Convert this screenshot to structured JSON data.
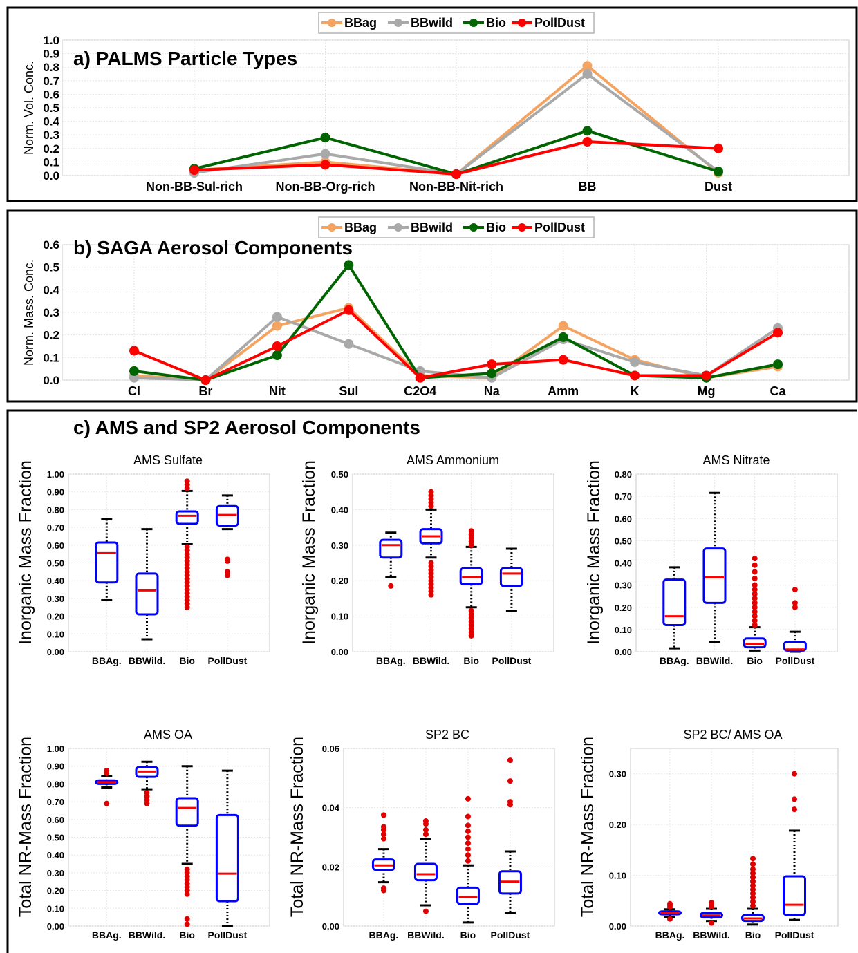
{
  "chart_data": [
    {
      "type": "line",
      "title": "a) PALMS Particle Types",
      "ylabel": "Norm. Vol. Conc.",
      "ylim": [
        0,
        1.0
      ],
      "yticks": [
        "0.0",
        "0.1",
        "0.2",
        "0.3",
        "0.4",
        "0.5",
        "0.6",
        "0.7",
        "0.8",
        "0.9",
        "1.0"
      ],
      "categories": [
        "Non-BB-Sul-rich",
        "Non-BB-Org-rich",
        "Non-BB-Nit-rich",
        "BB",
        "Dust"
      ],
      "legend": "top-center",
      "grid": true,
      "series": [
        {
          "name": "BBag",
          "color": "#f4a460",
          "values": [
            0.04,
            0.1,
            0.01,
            0.81,
            0.02
          ]
        },
        {
          "name": "BBwild",
          "color": "#a9a9a9",
          "values": [
            0.02,
            0.16,
            0.01,
            0.75,
            0.03
          ]
        },
        {
          "name": "Bio",
          "color": "#006400",
          "values": [
            0.05,
            0.28,
            0.01,
            0.33,
            0.03
          ]
        },
        {
          "name": "PollDust",
          "color": "#ff0000",
          "values": [
            0.04,
            0.08,
            0.01,
            0.25,
            0.2
          ]
        }
      ]
    },
    {
      "type": "line",
      "title": "b) SAGA Aerosol Components",
      "ylabel": "Norm. Mass. Conc.",
      "ylim": [
        0,
        0.6
      ],
      "yticks": [
        "0.0",
        "0.1",
        "0.2",
        "0.3",
        "0.4",
        "0.5",
        "0.6"
      ],
      "categories": [
        "Cl",
        "Br",
        "Nit",
        "Sul",
        "C2O4",
        "Na",
        "Amm",
        "K",
        "Mg",
        "Ca"
      ],
      "legend": "top-center",
      "grid": true,
      "series": [
        {
          "name": "BBag",
          "color": "#f4a460",
          "values": [
            0.02,
            0.0,
            0.24,
            0.32,
            0.02,
            0.01,
            0.24,
            0.09,
            0.01,
            0.06
          ]
        },
        {
          "name": "BBwild",
          "color": "#a9a9a9",
          "values": [
            0.01,
            0.0,
            0.28,
            0.16,
            0.04,
            0.01,
            0.18,
            0.08,
            0.02,
            0.23
          ]
        },
        {
          "name": "Bio",
          "color": "#006400",
          "values": [
            0.04,
            0.0,
            0.11,
            0.51,
            0.01,
            0.03,
            0.19,
            0.02,
            0.01,
            0.07
          ]
        },
        {
          "name": "PollDust",
          "color": "#ff0000",
          "values": [
            0.13,
            0.0,
            0.15,
            0.31,
            0.01,
            0.07,
            0.09,
            0.02,
            0.02,
            0.21
          ]
        }
      ]
    },
    {
      "type": "box",
      "group_title": "c) AMS and SP2 Aerosol Components",
      "panels": [
        {
          "title": "AMS Sulfate",
          "ylabel": "Inorganic Mass Fraction",
          "ylim": [
            0,
            1.0
          ],
          "yticks": [
            "0.00",
            "0.10",
            "0.20",
            "0.30",
            "0.40",
            "0.50",
            "0.60",
            "0.70",
            "0.80",
            "0.90",
            "1.00"
          ],
          "categories": [
            "BBAg.",
            "BBWild.",
            "Bio",
            "PollDust"
          ],
          "boxes": [
            {
              "q1": 0.39,
              "median": 0.555,
              "q3": 0.615,
              "whisker_low": 0.29,
              "whisker_high": 0.745,
              "outliers": []
            },
            {
              "q1": 0.21,
              "median": 0.345,
              "q3": 0.44,
              "whisker_low": 0.07,
              "whisker_high": 0.69,
              "outliers": []
            },
            {
              "q1": 0.72,
              "median": 0.765,
              "q3": 0.79,
              "whisker_low": 0.605,
              "whisker_high": 0.905,
              "outliers": [
                0.25,
                0.27,
                0.29,
                0.31,
                0.33,
                0.35,
                0.37,
                0.39,
                0.41,
                0.43,
                0.45,
                0.47,
                0.49,
                0.51,
                0.53,
                0.55,
                0.57,
                0.59,
                0.92,
                0.94,
                0.96
              ]
            },
            {
              "q1": 0.71,
              "median": 0.77,
              "q3": 0.82,
              "whisker_low": 0.69,
              "whisker_high": 0.88,
              "outliers": [
                0.43,
                0.45,
                0.51,
                0.52
              ]
            }
          ]
        },
        {
          "title": "AMS Ammonium",
          "ylabel": "Inorganic Mass Fraction",
          "ylim": [
            0,
            0.5
          ],
          "yticks": [
            "0.00",
            "0.10",
            "0.20",
            "0.30",
            "0.40",
            "0.50"
          ],
          "categories": [
            "BBAg.",
            "BBWild.",
            "Bio",
            "PollDust"
          ],
          "boxes": [
            {
              "q1": 0.265,
              "median": 0.3,
              "q3": 0.315,
              "whisker_low": 0.21,
              "whisker_high": 0.335,
              "outliers": [
                0.185
              ]
            },
            {
              "q1": 0.305,
              "median": 0.325,
              "q3": 0.345,
              "whisker_low": 0.265,
              "whisker_high": 0.4,
              "outliers": [
                0.16,
                0.17,
                0.18,
                0.19,
                0.2,
                0.21,
                0.22,
                0.23,
                0.24,
                0.25,
                0.41,
                0.42,
                0.43,
                0.44,
                0.45
              ]
            },
            {
              "q1": 0.19,
              "median": 0.21,
              "q3": 0.235,
              "whisker_low": 0.125,
              "whisker_high": 0.295,
              "outliers": [
                0.045,
                0.055,
                0.065,
                0.075,
                0.085,
                0.095,
                0.105,
                0.115,
                0.3,
                0.31,
                0.32,
                0.33,
                0.34
              ]
            },
            {
              "q1": 0.185,
              "median": 0.22,
              "q3": 0.235,
              "whisker_low": 0.115,
              "whisker_high": 0.29,
              "outliers": []
            }
          ]
        },
        {
          "title": "AMS Nitrate",
          "ylabel": "Inorganic Mass Fraction",
          "ylim": [
            0,
            0.8
          ],
          "yticks": [
            "0.00",
            "0.10",
            "0.20",
            "0.30",
            "0.40",
            "0.50",
            "0.60",
            "0.70",
            "0.80"
          ],
          "categories": [
            "BBAg.",
            "BBWild.",
            "Bio",
            "PollDust"
          ],
          "boxes": [
            {
              "q1": 0.12,
              "median": 0.16,
              "q3": 0.325,
              "whisker_low": 0.015,
              "whisker_high": 0.38,
              "outliers": []
            },
            {
              "q1": 0.22,
              "median": 0.335,
              "q3": 0.465,
              "whisker_low": 0.045,
              "whisker_high": 0.715,
              "outliers": []
            },
            {
              "q1": 0.02,
              "median": 0.035,
              "q3": 0.06,
              "whisker_low": 0.005,
              "whisker_high": 0.11,
              "outliers": [
                0.12,
                0.14,
                0.16,
                0.18,
                0.2,
                0.22,
                0.24,
                0.26,
                0.28,
                0.3,
                0.33,
                0.36,
                0.39,
                0.42
              ]
            },
            {
              "q1": 0.005,
              "median": 0.01,
              "q3": 0.045,
              "whisker_low": 0.0,
              "whisker_high": 0.09,
              "outliers": [
                0.2,
                0.22,
                0.28
              ]
            }
          ]
        },
        {
          "title": "AMS OA",
          "ylabel": "Total NR-Mass Fraction",
          "ylim": [
            0,
            1.0
          ],
          "yticks": [
            "0.00",
            "0.10",
            "0.20",
            "0.30",
            "0.40",
            "0.50",
            "0.60",
            "0.70",
            "0.80",
            "0.90",
            "1.00"
          ],
          "categories": [
            "BBAg.",
            "BBWild.",
            "Bio",
            "PollDust"
          ],
          "boxes": [
            {
              "q1": 0.8,
              "median": 0.81,
              "q3": 0.82,
              "whisker_low": 0.78,
              "whisker_high": 0.845,
              "outliers": [
                0.69,
                0.86,
                0.875
              ]
            },
            {
              "q1": 0.84,
              "median": 0.87,
              "q3": 0.895,
              "whisker_low": 0.77,
              "whisker_high": 0.925,
              "outliers": [
                0.69,
                0.71,
                0.73,
                0.75
              ]
            },
            {
              "q1": 0.565,
              "median": 0.665,
              "q3": 0.72,
              "whisker_low": 0.35,
              "whisker_high": 0.9,
              "outliers": [
                0.01,
                0.04,
                0.18,
                0.2,
                0.22,
                0.24,
                0.26,
                0.28,
                0.3,
                0.32
              ]
            },
            {
              "q1": 0.14,
              "median": 0.295,
              "q3": 0.625,
              "whisker_low": 0.0,
              "whisker_high": 0.875,
              "outliers": []
            }
          ]
        },
        {
          "title": "SP2 BC",
          "ylabel": "Total NR-Mass Fraction",
          "ylim": [
            0,
            0.06
          ],
          "yticks": [
            "0.00",
            "0.02",
            "0.04",
            "0.06"
          ],
          "categories": [
            "BBAg.",
            "BBWild.",
            "Bio",
            "PollDust"
          ],
          "boxes": [
            {
              "q1": 0.019,
              "median": 0.0205,
              "q3": 0.0225,
              "whisker_low": 0.0148,
              "whisker_high": 0.026,
              "outliers": [
                0.012,
                0.0128,
                0.0295,
                0.031,
                0.0325,
                0.0335,
                0.0375
              ]
            },
            {
              "q1": 0.0155,
              "median": 0.0175,
              "q3": 0.021,
              "whisker_low": 0.007,
              "whisker_high": 0.0295,
              "outliers": [
                0.005,
                0.031,
                0.0325,
                0.0345,
                0.0355
              ]
            },
            {
              "q1": 0.0075,
              "median": 0.0098,
              "q3": 0.013,
              "whisker_low": 0.0012,
              "whisker_high": 0.0205,
              "outliers": [
                0.022,
                0.024,
                0.026,
                0.028,
                0.03,
                0.032,
                0.034,
                0.037,
                0.043
              ]
            },
            {
              "q1": 0.011,
              "median": 0.015,
              "q3": 0.0185,
              "whisker_low": 0.0045,
              "whisker_high": 0.0252,
              "outliers": [
                0.041,
                0.042,
                0.049,
                0.056
              ]
            }
          ]
        },
        {
          "title": "SP2 BC/ AMS OA",
          "ylabel": "Total NR-Mass Fraction",
          "ylim": [
            0,
            0.35
          ],
          "yticks": [
            "0.00",
            "0.10",
            "0.20",
            "0.30"
          ],
          "categories": [
            "BBAg.",
            "BBWild.",
            "Bio",
            "PollDust"
          ],
          "boxes": [
            {
              "q1": 0.023,
              "median": 0.026,
              "q3": 0.029,
              "whisker_low": 0.018,
              "whisker_high": 0.033,
              "outliers": [
                0.014,
                0.037,
                0.041,
                0.044
              ]
            },
            {
              "q1": 0.017,
              "median": 0.021,
              "q3": 0.026,
              "whisker_low": 0.01,
              "whisker_high": 0.034,
              "outliers": [
                0.006,
                0.038,
                0.042,
                0.046
              ]
            },
            {
              "q1": 0.01,
              "median": 0.015,
              "q3": 0.022,
              "whisker_low": 0.003,
              "whisker_high": 0.034,
              "outliers": [
                0.04,
                0.048,
                0.056,
                0.064,
                0.072,
                0.08,
                0.088,
                0.096,
                0.104,
                0.112,
                0.122,
                0.133
              ]
            },
            {
              "q1": 0.022,
              "median": 0.042,
              "q3": 0.098,
              "whisker_low": 0.012,
              "whisker_high": 0.188,
              "outliers": [
                0.23,
                0.25,
                0.3
              ]
            }
          ]
        }
      ]
    }
  ],
  "style": {
    "box_color": "#0000ff",
    "median_color": "#ff0000",
    "outlier_color": "#e00000",
    "whisker_color": "#000000"
  }
}
